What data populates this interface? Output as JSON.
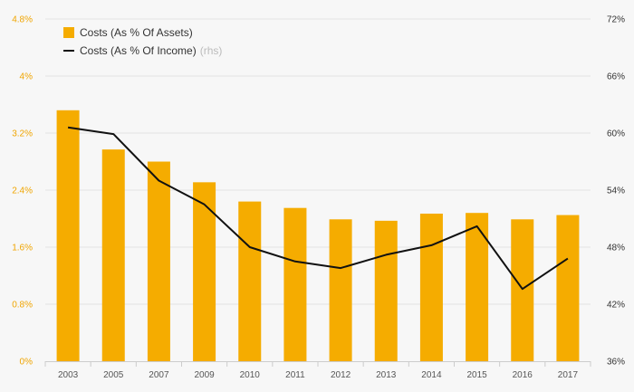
{
  "chart_data": {
    "type": "bar",
    "categories": [
      "2003",
      "2005",
      "2007",
      "2009",
      "2010",
      "2011",
      "2012",
      "2013",
      "2014",
      "2015",
      "2016",
      "2017"
    ],
    "series": [
      {
        "name": "Costs (As % Of Assets)",
        "type": "bar",
        "axis": "left",
        "color": "#f5ac00",
        "values": [
          3.52,
          2.97,
          2.8,
          2.51,
          2.24,
          2.15,
          1.99,
          1.97,
          2.07,
          2.08,
          1.99,
          2.05
        ]
      },
      {
        "name": "Costs (As % Of Income)",
        "note": "(rhs)",
        "type": "line",
        "axis": "right",
        "color": "#111111",
        "values": [
          60.6,
          59.9,
          55.0,
          52.5,
          48.0,
          46.5,
          45.8,
          47.2,
          48.2,
          50.2,
          43.6,
          46.8
        ]
      }
    ],
    "yleft": {
      "lim": [
        0,
        4.8
      ],
      "ticks": [
        0,
        0.8,
        1.6,
        2.4,
        3.2,
        4.0,
        4.8
      ],
      "tick_labels": [
        "0%",
        "0.8%",
        "1.6%",
        "2.4%",
        "3.2%",
        "4%",
        "4.8%"
      ]
    },
    "yright": {
      "lim": [
        36,
        72
      ],
      "ticks": [
        36,
        42,
        48,
        54,
        60,
        66,
        72
      ],
      "tick_labels": [
        "36%",
        "42%",
        "48%",
        "54%",
        "60%",
        "66%",
        "72%"
      ]
    },
    "grid": true,
    "legend_position": "top-left"
  }
}
